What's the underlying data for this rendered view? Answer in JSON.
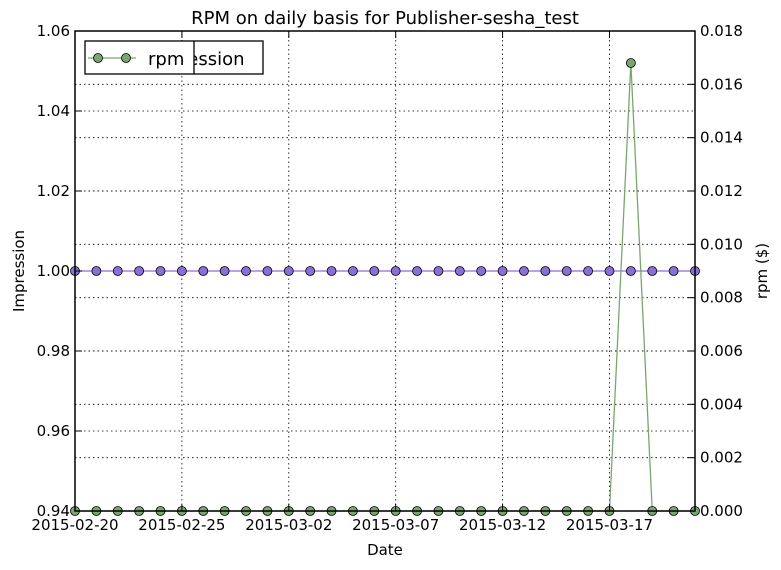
{
  "chart_data": {
    "type": "line",
    "title": "RPM on daily basis for Publisher-sesha_test",
    "xlabel": "Date",
    "ylabel": "Impression",
    "ylabel_right": "rpm ($)",
    "x_start": "2015-02-20",
    "x_end": "2015-03-21",
    "x_ticks": [
      "2015-02-20",
      "2015-02-25",
      "2015-03-02",
      "2015-03-07",
      "2015-03-12",
      "2015-03-17"
    ],
    "y_ticks_left": [
      "0.94",
      "0.96",
      "0.98",
      "1.00",
      "1.02",
      "1.04",
      "1.06"
    ],
    "y_ticks_right": [
      "0.000",
      "0.002",
      "0.004",
      "0.006",
      "0.008",
      "0.010",
      "0.012",
      "0.014",
      "0.016",
      "0.018"
    ],
    "ylim_left": [
      0.94,
      1.06
    ],
    "ylim_right": [
      0.0,
      0.018
    ],
    "grid": true,
    "legend": {
      "position": "top-left",
      "entries": [
        "Impression",
        "rpm"
      ]
    },
    "series": [
      {
        "name": "Impression",
        "axis": "left",
        "color": "#8a6fd6",
        "values": [
          1,
          1,
          1,
          1,
          1,
          1,
          1,
          1,
          1,
          1,
          1,
          1,
          1,
          1,
          1,
          1,
          1,
          1,
          1,
          1,
          1,
          1,
          1,
          1,
          1,
          1,
          1,
          1,
          1,
          1
        ]
      },
      {
        "name": "rpm",
        "axis": "right",
        "color": "#7aa66e",
        "values": [
          0,
          0,
          0,
          0,
          0,
          0,
          0,
          0,
          0,
          0,
          0,
          0,
          0,
          0,
          0,
          0,
          0,
          0,
          0,
          0,
          0,
          0,
          0,
          0,
          0,
          0,
          0.0168,
          0,
          0,
          0
        ]
      }
    ]
  }
}
